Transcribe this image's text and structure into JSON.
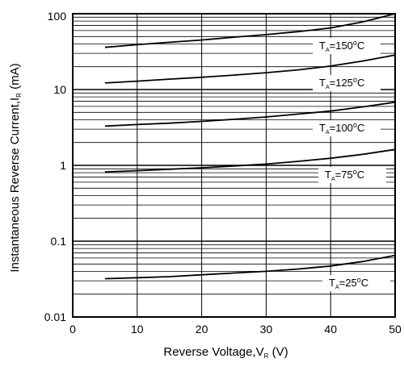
{
  "chart_data": {
    "type": "line",
    "xlabel": {
      "main": "Reverse Voltage,V",
      "sub": "R",
      "suffix": " (V)"
    },
    "ylabel": {
      "main": "Instantaneous Reverse Current,I",
      "sub": "R",
      "suffix": " (mA)"
    },
    "xlim": [
      0,
      50
    ],
    "ylim": [
      0.01,
      100
    ],
    "yscale": "log",
    "grid": true,
    "x_ticks": [
      0,
      10,
      20,
      30,
      40,
      50
    ],
    "x_tick_labels": [
      "0",
      "10",
      "20",
      "30",
      "40",
      "50"
    ],
    "y_ticks": [
      0.01,
      0.1,
      1,
      10,
      100
    ],
    "y_tick_labels": [
      "0.01",
      "0.1",
      "1",
      "10",
      "100"
    ],
    "series": [
      {
        "label": {
          "prefix": "T",
          "sub": "A",
          "value": "=150",
          "deg": "o",
          "unit": "C"
        },
        "x": [
          5,
          10,
          15,
          20,
          25,
          30,
          35,
          40,
          45,
          50
        ],
        "y": [
          36,
          39,
          42,
          45,
          49,
          53,
          58,
          65,
          78,
          100
        ]
      },
      {
        "label": {
          "prefix": "T",
          "sub": "A",
          "value": "=125",
          "deg": "o",
          "unit": "C"
        },
        "x": [
          5,
          10,
          15,
          20,
          25,
          30,
          35,
          40,
          45,
          50
        ],
        "y": [
          12.2,
          12.9,
          13.7,
          14.5,
          15.5,
          16.7,
          18.2,
          20.4,
          23.8,
          28.5
        ]
      },
      {
        "label": {
          "prefix": "T",
          "sub": "A",
          "value": "=100",
          "deg": "o",
          "unit": "C"
        },
        "x": [
          5,
          10,
          15,
          20,
          25,
          30,
          35,
          40,
          45,
          50
        ],
        "y": [
          3.3,
          3.45,
          3.6,
          3.8,
          4.05,
          4.35,
          4.75,
          5.2,
          5.9,
          6.8
        ]
      },
      {
        "label": {
          "prefix": "T",
          "sub": "A",
          "value": "=75",
          "deg": "o",
          "unit": "C"
        },
        "x": [
          5,
          10,
          15,
          20,
          25,
          30,
          35,
          40,
          45,
          50
        ],
        "y": [
          0.82,
          0.85,
          0.89,
          0.93,
          0.98,
          1.04,
          1.13,
          1.24,
          1.4,
          1.62
        ]
      },
      {
        "label": {
          "prefix": "T",
          "sub": "A",
          "value": "=25",
          "deg": "o",
          "unit": "C"
        },
        "x": [
          5,
          10,
          15,
          20,
          25,
          30,
          35,
          40,
          45,
          50
        ],
        "y": [
          0.032,
          0.033,
          0.034,
          0.036,
          0.038,
          0.04,
          0.043,
          0.047,
          0.054,
          0.065
        ]
      }
    ]
  }
}
